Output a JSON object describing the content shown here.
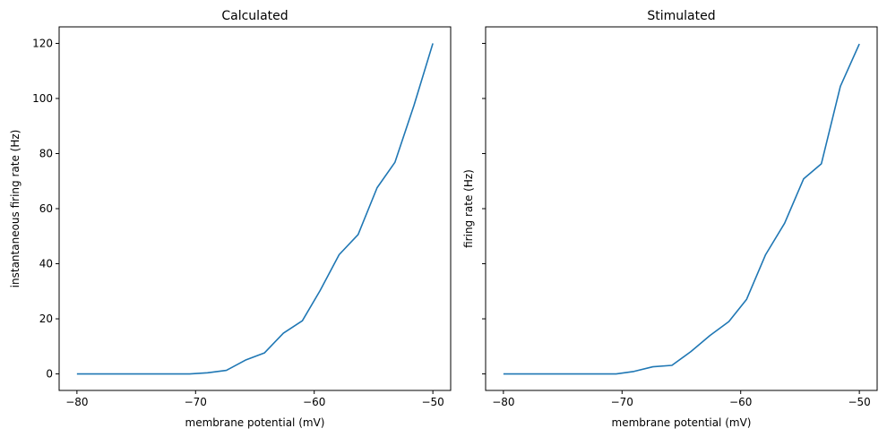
{
  "chart_data": [
    {
      "type": "line",
      "title": "Calculated",
      "xlabel": "membrane potential (mV)",
      "ylabel": "instantaneous firing rate (Hz)",
      "xlim": [
        -81.5,
        -48.5
      ],
      "ylim": [
        -6,
        126
      ],
      "xticks": [
        -80,
        -70,
        -60,
        -50
      ],
      "xtick_labels": [
        "−80",
        "−70",
        "−60",
        "−50"
      ],
      "yticks": [
        0,
        20,
        40,
        60,
        80,
        100,
        120
      ],
      "ytick_labels": [
        "0",
        "20",
        "40",
        "60",
        "80",
        "100",
        "120"
      ],
      "show_ytick_labels": true,
      "grid": false,
      "color": "#1f77b4",
      "x": [
        -80,
        -78.4,
        -76.8,
        -75.3,
        -73.7,
        -72.1,
        -70.5,
        -69.0,
        -67.4,
        -65.8,
        -64.2,
        -62.6,
        -61.0,
        -59.5,
        -57.9,
        -56.3,
        -54.7,
        -53.2,
        -51.6,
        -50.0
      ],
      "y": [
        0,
        0,
        0,
        0,
        0,
        0,
        0,
        0.4,
        1.3,
        5.0,
        7.6,
        14.8,
        19.3,
        30.3,
        43.3,
        50.6,
        67.6,
        76.8,
        97.4,
        120.0
      ]
    },
    {
      "type": "line",
      "title": "Stimulated",
      "xlabel": "membrane potential (mV)",
      "ylabel": "firing rate (Hz)",
      "xlim": [
        -81.5,
        -48.5
      ],
      "ylim": [
        -6,
        126
      ],
      "xticks": [
        -80,
        -70,
        -60,
        -50
      ],
      "xtick_labels": [
        "−80",
        "−70",
        "−60",
        "−50"
      ],
      "yticks": [
        0,
        20,
        40,
        60,
        80,
        100,
        120
      ],
      "ytick_labels": [],
      "show_ytick_labels": false,
      "grid": false,
      "color": "#1f77b4",
      "x": [
        -80,
        -78.4,
        -76.8,
        -75.3,
        -73.7,
        -72.1,
        -70.5,
        -69.0,
        -67.4,
        -65.8,
        -64.2,
        -62.6,
        -61.0,
        -59.5,
        -57.9,
        -56.3,
        -54.7,
        -53.2,
        -51.6,
        -50.0
      ],
      "y": [
        0,
        0,
        0,
        0,
        0,
        0,
        0,
        0.9,
        2.6,
        3.1,
        8.1,
        13.9,
        19.0,
        27.1,
        43.3,
        54.7,
        70.8,
        76.3,
        104.4,
        119.8
      ]
    }
  ]
}
